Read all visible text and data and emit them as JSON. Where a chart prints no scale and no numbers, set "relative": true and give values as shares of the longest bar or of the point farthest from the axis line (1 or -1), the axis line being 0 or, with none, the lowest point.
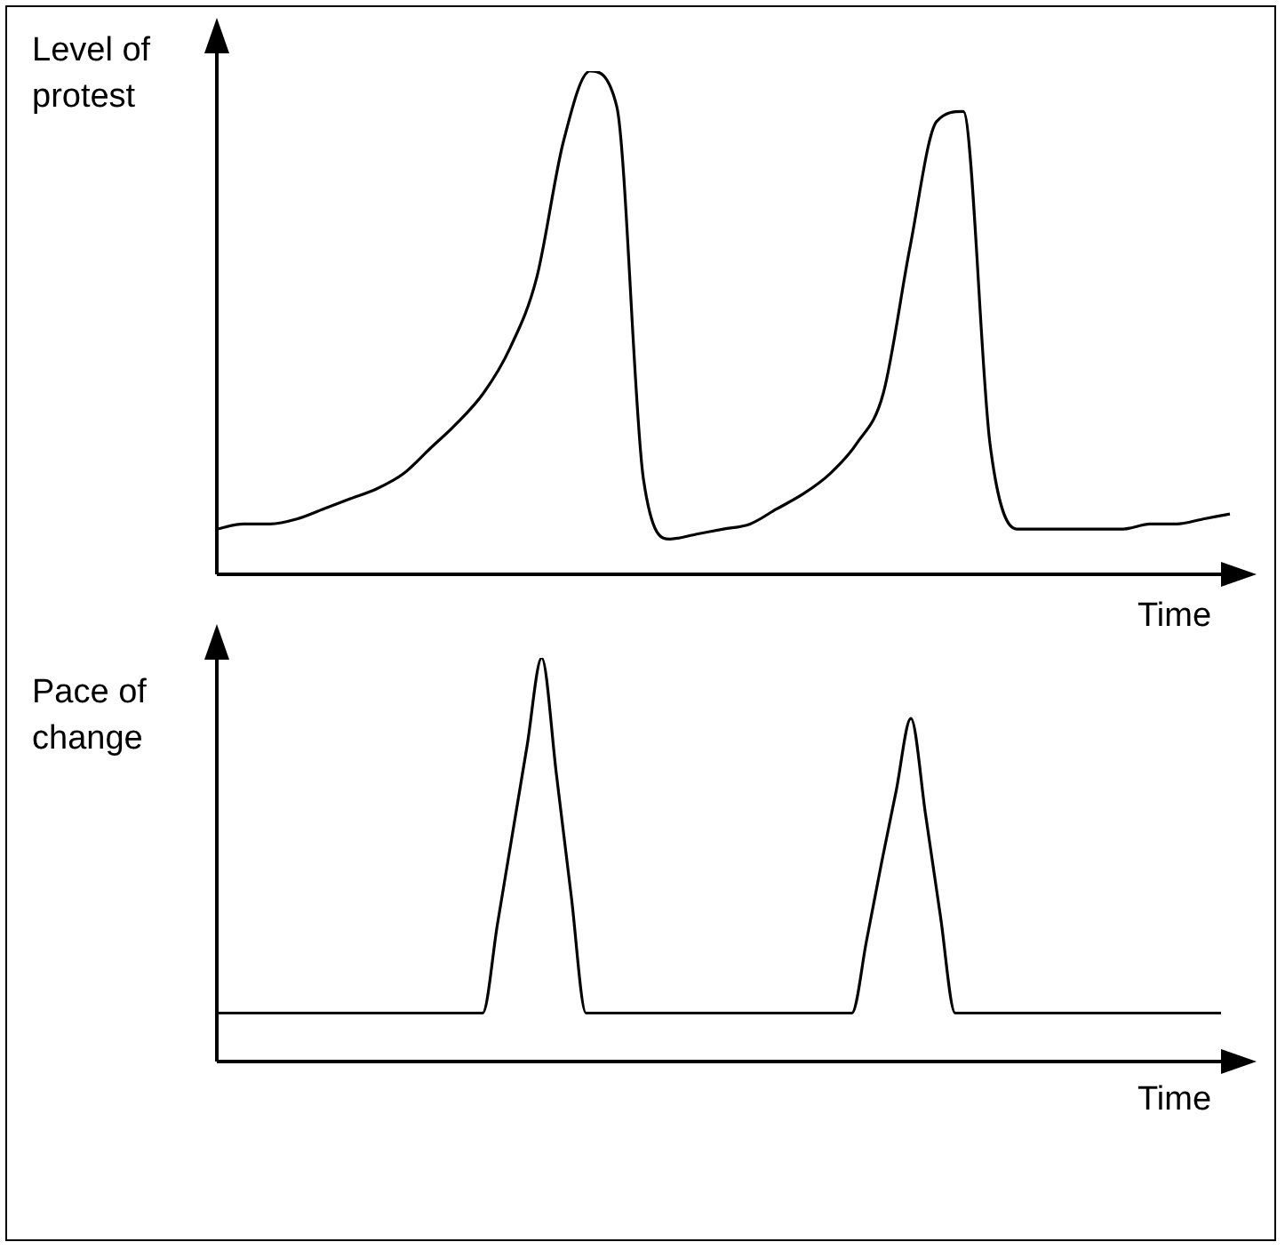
{
  "chart_data": [
    {
      "type": "line",
      "relative": true,
      "ylabel": "Level of protest",
      "xlabel": "Time",
      "color": "#000000",
      "categories": [
        null,
        null,
        null,
        null,
        null,
        null,
        null,
        null,
        null,
        null,
        null,
        null,
        null,
        null,
        null,
        null,
        null,
        null,
        null,
        null,
        null,
        null,
        null,
        null,
        null,
        null,
        null,
        null,
        null,
        null,
        null,
        null,
        null,
        null,
        null,
        null,
        null,
        null,
        null
      ],
      "values": [
        0.09,
        0.1,
        0.1,
        0.11,
        0.13,
        0.15,
        0.17,
        0.2,
        0.25,
        0.3,
        0.36,
        0.45,
        0.59,
        0.86,
        1,
        0.93,
        0.19,
        0.07,
        0.08,
        0.09,
        0.1,
        0.13,
        0.16,
        0.2,
        0.26,
        0.36,
        0.65,
        0.9,
        0.92,
        0.26,
        0.09,
        0.09,
        0.09,
        0.09,
        0.09,
        0.1,
        0.1,
        0.11,
        0.12
      ]
    },
    {
      "type": "line",
      "relative": true,
      "ylabel": "Pace of change",
      "xlabel": "Time",
      "color": "#000000",
      "categories": [
        null,
        null,
        null,
        null,
        null,
        null,
        null,
        null,
        null,
        null,
        null,
        null,
        null,
        null,
        null,
        null,
        null,
        null,
        null,
        null,
        null,
        null,
        null,
        null,
        null,
        null,
        null,
        null,
        null,
        null,
        null,
        null,
        null,
        null,
        null,
        null,
        null,
        null,
        null,
        null,
        null,
        null,
        null,
        null,
        null,
        null,
        null,
        null,
        null,
        null,
        null,
        null,
        null,
        null,
        null,
        null,
        null,
        null,
        null,
        null,
        null,
        null,
        null,
        null,
        null,
        null,
        null,
        null,
        null
      ],
      "values": [
        0.12,
        0.12,
        0.12,
        0.12,
        0.12,
        0.12,
        0.12,
        0.12,
        0.12,
        0.12,
        0.12,
        0.12,
        0.12,
        0.12,
        0.12,
        0.12,
        0.12,
        0.12,
        0.12,
        0.34,
        0.56,
        0.78,
        1,
        0.71,
        0.41,
        0.12,
        0.12,
        0.12,
        0.12,
        0.12,
        0.12,
        0.12,
        0.12,
        0.12,
        0.12,
        0.12,
        0.12,
        0.12,
        0.12,
        0.12,
        0.12,
        0.12,
        0.12,
        0.12,
        0.3,
        0.49,
        0.67,
        0.85,
        0.61,
        0.36,
        0.12,
        0.12,
        0.12,
        0.12,
        0.12,
        0.12,
        0.12,
        0.12,
        0.12,
        0.12,
        0.12,
        0.12,
        0.12,
        0.12,
        0.12,
        0.12,
        0.12,
        0.12,
        0.12
      ]
    }
  ]
}
